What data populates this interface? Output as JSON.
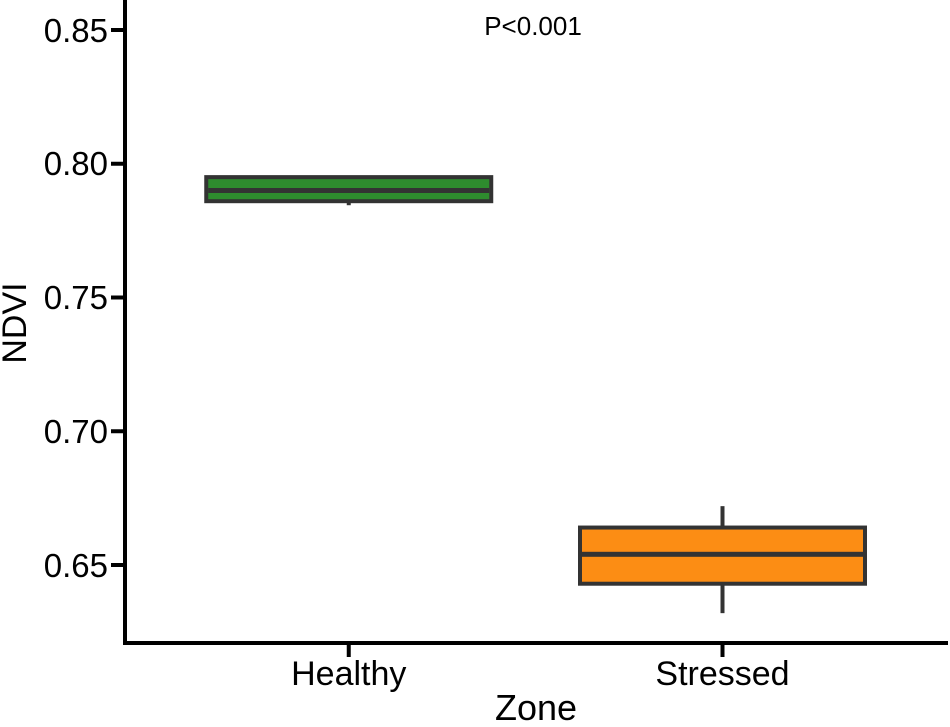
{
  "chart_data": {
    "type": "boxplot",
    "annotation": "P<0.001",
    "xlabel": "Zone",
    "ylabel": "NDVI",
    "categories": [
      "Healthy",
      "Stressed"
    ],
    "y_ticks": [
      {
        "label": "0.85",
        "value": 0.85
      },
      {
        "label": "0.80",
        "value": 0.8
      },
      {
        "label": "0.75",
        "value": 0.75
      },
      {
        "label": "0.70",
        "value": 0.7
      },
      {
        "label": "0.65",
        "value": 0.65
      }
    ],
    "ylim": [
      0.628,
      0.861
    ],
    "series": [
      {
        "name": "Healthy",
        "color": "#2e8c2e",
        "whisker_low": 0.7845,
        "q1": 0.786,
        "median": 0.79,
        "q3": 0.795,
        "whisker_high": 0.795
      },
      {
        "name": "Stressed",
        "color": "#fc8d14",
        "whisker_low": 0.632,
        "q1": 0.643,
        "median": 0.654,
        "q3": 0.664,
        "whisker_high": 0.672
      }
    ],
    "box_border_color": "#333333",
    "axis_color": "#000000",
    "background": "#ffffff",
    "grid": false,
    "legend": "none"
  }
}
